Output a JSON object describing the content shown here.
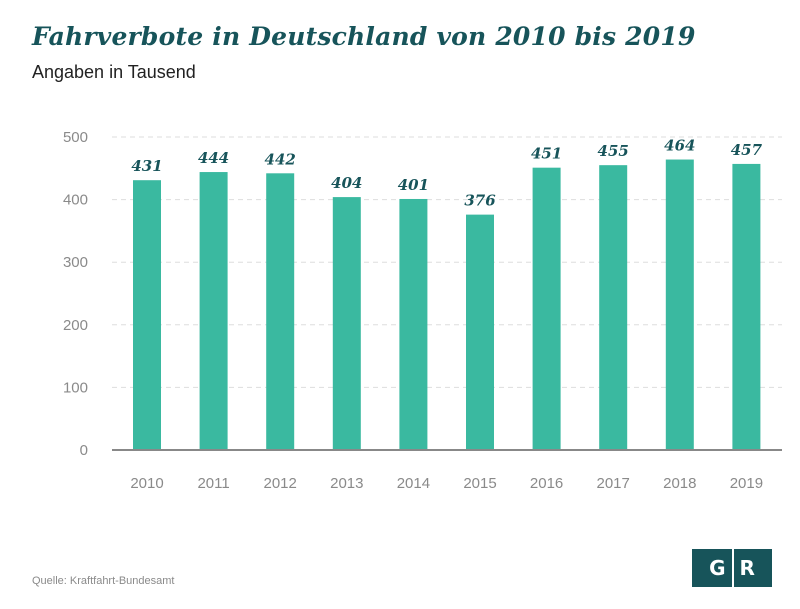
{
  "header": {
    "title": "Fahrverbote in Deutschland von 2010 bis 2019",
    "subtitle": "Angaben in Tausend"
  },
  "footer": {
    "source": "Quelle: Kraftfahrt-Bundesamt",
    "logo_left": "G",
    "logo_right": "R"
  },
  "colors": {
    "bar": "#3ab9a0",
    "title": "#17545a",
    "grid": "#dddddd",
    "axis": "#888888"
  },
  "chart_data": {
    "type": "bar",
    "title": "Fahrverbote in Deutschland von 2010 bis 2019",
    "subtitle": "Angaben in Tausend",
    "xlabel": "",
    "ylabel": "",
    "categories": [
      "2010",
      "2011",
      "2012",
      "2013",
      "2014",
      "2015",
      "2016",
      "2017",
      "2018",
      "2019"
    ],
    "values": [
      431,
      444,
      442,
      404,
      401,
      376,
      451,
      455,
      464,
      457
    ],
    "ylim": [
      0,
      500
    ],
    "yticks": [
      0,
      100,
      200,
      300,
      400,
      500
    ],
    "grid": true,
    "legend": "none"
  }
}
